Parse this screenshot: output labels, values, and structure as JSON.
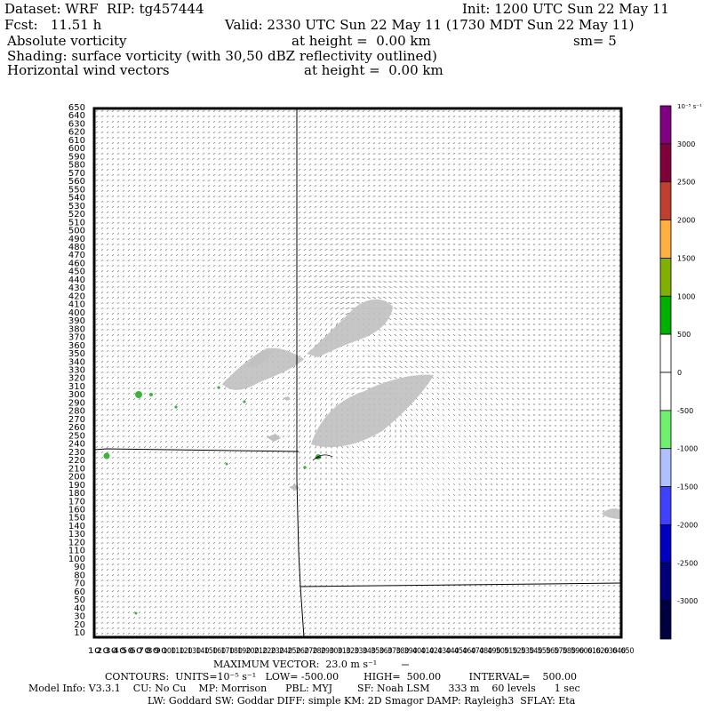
{
  "header": {
    "line1_left": "Dataset: WRF  RIP: tg457444",
    "line1_right": "Init: 1200 UTC Sun 22 May 11",
    "line2_left": "Fcst:   11.51 h",
    "line2_right": "Valid: 2330 UTC Sun 22 May 11 (1730 MDT Sun 22 May 11)",
    "line3_left": "Absolute vorticity",
    "line3_mid": "at height =  0.00 km",
    "line3_right": "sm= 5",
    "line4": "Shading: surface vorticity (with 30,50 dBZ reflectivity outlined)",
    "line5_left": "Horizontal wind vectors",
    "line5_mid": "at height =  0.00 km"
  },
  "map": {
    "y_tick_start": 10,
    "y_tick_end": 650,
    "y_tick_step": 10,
    "x_tick_start": 10,
    "x_tick_end": 650,
    "x_tick_step": 10
  },
  "colorbar": {
    "unit_label": "10⁻⁵ s⁻¹",
    "labels": [
      "3000",
      "2500",
      "2000",
      "1500",
      "1000",
      "500",
      "0",
      "-500",
      "-1000",
      "-1500",
      "-2000",
      "-2500",
      "-3000"
    ],
    "colors": [
      "#800080",
      "#80003a",
      "#c04030",
      "#ffb040",
      "#80b000",
      "#00b000",
      "#ffffff",
      "#ffffff",
      "#70f070",
      "#b0c0ff",
      "#4040ff",
      "#0000c0",
      "#00007a",
      "#000040"
    ]
  },
  "colors": {
    "shade_positive": "#c0c0c0",
    "shade_negative": "#3cb43c",
    "border": "#000000"
  },
  "footer": {
    "max_vector": "MAXIMUM VECTOR:  23.0 m s⁻¹",
    "contours": "CONTOURS:  UNITS=10⁻⁵ s⁻¹   LOW= -500.00        HIGH=  500.00         INTERVAL=    500.00",
    "model_info": "Model Info: V3.3.1    CU: No Cu    MP: Morrison      PBL: MYJ        SF: Noah LSM      333 m    60 levels      1 sec",
    "model_info2": "LW: Goddard SW: Goddar DIFF: simple KM: 2D Smagor DAMP: Rayleigh3  SFLAY: Eta"
  }
}
